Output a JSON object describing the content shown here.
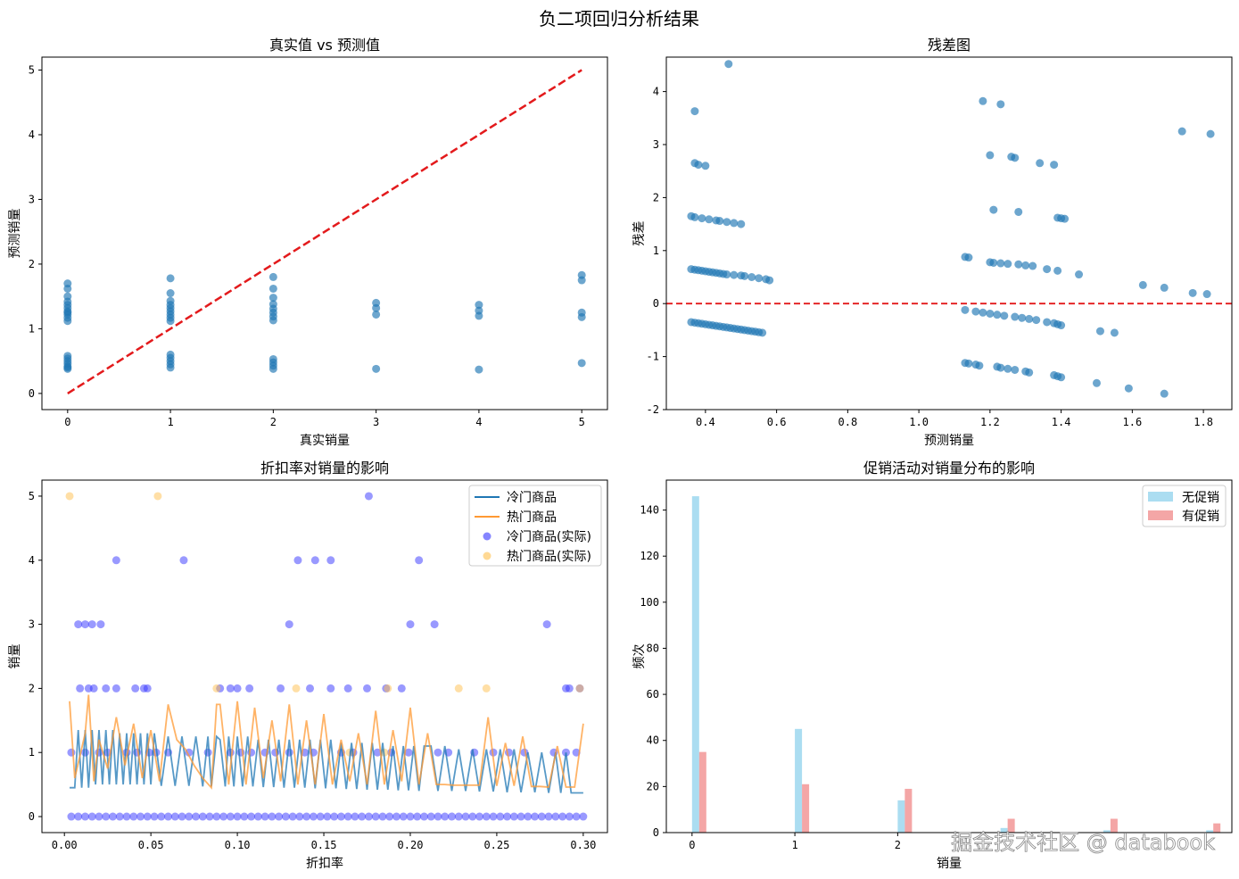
{
  "figure": {
    "suptitle": "负二项回归分析结果",
    "watermark": "掘金技术社区 @ databook"
  },
  "chart_data": [
    {
      "type": "scatter",
      "title": "真实值 vs 预测值",
      "xlabel": "真实销量",
      "ylabel": "预测销量",
      "xlim": [
        -0.25,
        5.25
      ],
      "ylim": [
        -0.25,
        5.2
      ],
      "xticks": [
        0,
        1,
        2,
        3,
        4,
        5
      ],
      "yticks": [
        0,
        1,
        2,
        3,
        4,
        5
      ],
      "color": "#1f77b4",
      "reference_line": {
        "x": [
          0,
          5
        ],
        "y": [
          0,
          5
        ],
        "color": "#e31a1c",
        "style": "dashed"
      },
      "points": {
        "x": [
          0,
          0,
          0,
          0,
          0,
          0,
          0,
          0,
          0,
          0,
          0,
          0,
          0,
          0,
          0,
          0,
          0,
          0,
          1,
          1,
          1,
          1,
          1,
          1,
          1,
          1,
          1,
          1,
          1,
          1,
          1,
          1,
          2,
          2,
          2,
          2,
          2,
          2,
          2,
          2,
          2,
          2,
          2,
          2,
          3,
          3,
          3,
          3,
          4,
          4,
          4,
          4,
          5,
          5,
          5,
          5,
          5
        ],
        "y": [
          0.38,
          0.42,
          0.46,
          0.5,
          0.54,
          0.58,
          1.12,
          1.17,
          1.22,
          1.27,
          1.32,
          1.37,
          1.42,
          1.5,
          1.62,
          1.7,
          0.4,
          1.25,
          0.4,
          0.45,
          0.5,
          0.55,
          0.6,
          1.12,
          1.17,
          1.22,
          1.27,
          1.32,
          1.37,
          1.43,
          1.55,
          1.78,
          0.38,
          0.43,
          0.48,
          0.53,
          1.13,
          1.19,
          1.25,
          1.31,
          1.38,
          1.48,
          1.62,
          1.8,
          0.38,
          1.22,
          1.32,
          1.4,
          0.37,
          1.2,
          1.28,
          1.37,
          0.47,
          1.18,
          1.25,
          1.75,
          1.83
        ]
      }
    },
    {
      "type": "scatter",
      "title": "残差图",
      "xlabel": "预测销量",
      "ylabel": "残差",
      "xlim": [
        0.29,
        1.88
      ],
      "ylim": [
        -2,
        4.65
      ],
      "xticks": [
        0.4,
        0.6,
        0.8,
        1.0,
        1.2,
        1.4,
        1.6,
        1.8
      ],
      "xtick_labels": [
        "0.4",
        "0.6",
        "0.8",
        "1.0",
        "1.2",
        "1.4",
        "1.6",
        "1.8"
      ],
      "yticks": [
        -2,
        -1,
        0,
        1,
        2,
        3,
        4
      ],
      "color": "#1f77b4",
      "reference_line": {
        "y": 0,
        "color": "#e31a1c",
        "style": "dashed"
      },
      "points": {
        "x": [
          0.36,
          0.37,
          0.38,
          0.39,
          0.4,
          0.41,
          0.42,
          0.43,
          0.44,
          0.45,
          0.46,
          0.47,
          0.48,
          0.49,
          0.5,
          0.51,
          0.52,
          0.53,
          0.54,
          0.55,
          0.56,
          0.36,
          0.37,
          0.38,
          0.39,
          0.4,
          0.41,
          0.42,
          0.43,
          0.44,
          0.45,
          0.46,
          0.48,
          0.5,
          0.51,
          0.53,
          0.55,
          0.57,
          0.58,
          0.36,
          0.37,
          0.39,
          0.41,
          0.43,
          0.44,
          0.46,
          0.48,
          0.5,
          0.37,
          0.38,
          0.4,
          0.465,
          0.37,
          1.13,
          1.16,
          1.18,
          1.2,
          1.22,
          1.24,
          1.27,
          1.29,
          1.31,
          1.33,
          1.36,
          1.38,
          1.39,
          1.4,
          1.13,
          1.14,
          1.16,
          1.17,
          1.22,
          1.23,
          1.25,
          1.27,
          1.3,
          1.31,
          1.38,
          1.39,
          1.4,
          1.13,
          1.14,
          1.2,
          1.21,
          1.23,
          1.25,
          1.28,
          1.3,
          1.32,
          1.36,
          1.39,
          1.45,
          1.21,
          1.28,
          1.39,
          1.4,
          1.41,
          1.2,
          1.26,
          1.27,
          1.34,
          1.38,
          1.18,
          1.23,
          1.51,
          1.55,
          1.63,
          1.69,
          1.77,
          1.81,
          1.5,
          1.59,
          1.69,
          1.74,
          1.82
        ],
        "y": [
          -0.35,
          -0.36,
          -0.37,
          -0.38,
          -0.39,
          -0.4,
          -0.41,
          -0.42,
          -0.43,
          -0.44,
          -0.45,
          -0.46,
          -0.47,
          -0.48,
          -0.49,
          -0.5,
          -0.51,
          -0.52,
          -0.53,
          -0.54,
          -0.55,
          0.65,
          0.64,
          0.63,
          0.62,
          0.61,
          0.6,
          0.59,
          0.58,
          0.57,
          0.56,
          0.55,
          0.54,
          0.53,
          0.52,
          0.5,
          0.48,
          0.46,
          0.44,
          1.65,
          1.63,
          1.61,
          1.59,
          1.57,
          1.56,
          1.54,
          1.52,
          1.5,
          2.65,
          2.62,
          2.6,
          4.52,
          3.63,
          -0.12,
          -0.15,
          -0.17,
          -0.19,
          -0.21,
          -0.23,
          -0.25,
          -0.27,
          -0.29,
          -0.31,
          -0.35,
          -0.37,
          -0.39,
          -0.41,
          -1.12,
          -1.13,
          -1.15,
          -1.17,
          -1.19,
          -1.21,
          -1.23,
          -1.25,
          -1.28,
          -1.3,
          -1.35,
          -1.37,
          -1.39,
          0.88,
          0.87,
          0.78,
          0.77,
          0.76,
          0.75,
          0.74,
          0.72,
          0.71,
          0.65,
          0.62,
          0.55,
          1.77,
          1.73,
          1.62,
          1.61,
          1.6,
          2.8,
          2.77,
          2.75,
          2.65,
          2.62,
          3.82,
          3.76,
          -0.52,
          -0.55,
          0.35,
          0.3,
          0.2,
          0.18,
          -1.5,
          -1.6,
          -1.7,
          3.25,
          3.2
        ]
      }
    },
    {
      "type": "line",
      "title": "折扣率对销量的影响",
      "xlabel": "折扣率",
      "ylabel": "销量",
      "xlim": [
        -0.013,
        0.314
      ],
      "ylim": [
        -0.25,
        5.25
      ],
      "xticks": [
        0,
        0.05,
        0.1,
        0.15,
        0.2,
        0.25,
        0.3
      ],
      "xtick_labels": [
        "0.00",
        "0.05",
        "0.10",
        "0.15",
        "0.20",
        "0.25",
        "0.30"
      ],
      "yticks": [
        0,
        1,
        2,
        3,
        4,
        5
      ],
      "legend": "top-right",
      "series": [
        {
          "name": "冷门商品",
          "color": "#1f77b4",
          "kind": "line",
          "x": [
            0.003,
            0.006,
            0.008,
            0.01,
            0.012,
            0.014,
            0.016,
            0.018,
            0.02,
            0.022,
            0.024,
            0.026,
            0.028,
            0.03,
            0.032,
            0.034,
            0.036,
            0.038,
            0.04,
            0.042,
            0.044,
            0.046,
            0.048,
            0.05,
            0.052,
            0.056,
            0.06,
            0.064,
            0.068,
            0.072,
            0.076,
            0.08,
            0.083,
            0.085,
            0.088,
            0.09,
            0.093,
            0.095,
            0.098,
            0.1,
            0.103,
            0.106,
            0.109,
            0.112,
            0.115,
            0.118,
            0.121,
            0.124,
            0.127,
            0.13,
            0.133,
            0.136,
            0.139,
            0.142,
            0.145,
            0.148,
            0.151,
            0.154,
            0.157,
            0.16,
            0.163,
            0.166,
            0.169,
            0.172,
            0.175,
            0.178,
            0.181,
            0.184,
            0.187,
            0.19,
            0.193,
            0.196,
            0.199,
            0.202,
            0.205,
            0.208,
            0.212,
            0.216,
            0.22,
            0.224,
            0.228,
            0.232,
            0.236,
            0.24,
            0.244,
            0.248,
            0.252,
            0.256,
            0.26,
            0.264,
            0.268,
            0.272,
            0.276,
            0.28,
            0.284,
            0.287,
            0.29,
            0.293,
            0.296,
            0.3
          ],
          "y": [
            0.45,
            0.45,
            1.35,
            0.45,
            1.35,
            0.45,
            1.35,
            0.5,
            1.35,
            0.5,
            1.35,
            0.5,
            1.35,
            0.5,
            1.3,
            0.5,
            1.3,
            0.5,
            1.3,
            0.5,
            1.3,
            0.5,
            1.3,
            0.5,
            1.3,
            0.48,
            1.25,
            0.48,
            1.25,
            0.48,
            1.25,
            0.47,
            1.25,
            0.47,
            1.25,
            1.2,
            0.47,
            1.25,
            0.47,
            1.25,
            0.47,
            1.25,
            0.47,
            1.2,
            0.46,
            1.2,
            0.46,
            1.2,
            0.45,
            1.2,
            0.45,
            1.2,
            0.45,
            1.2,
            0.44,
            1.2,
            0.44,
            1.2,
            0.44,
            1.15,
            0.43,
            1.15,
            0.43,
            1.15,
            0.42,
            1.15,
            0.42,
            1.15,
            0.42,
            1.1,
            0.41,
            1.1,
            0.41,
            1.1,
            0.4,
            1.1,
            1.1,
            0.4,
            1.1,
            0.4,
            1.05,
            0.4,
            1.05,
            0.39,
            1.05,
            0.39,
            1.05,
            0.38,
            1.05,
            0.38,
            1.0,
            0.38,
            1.0,
            0.37,
            1.0,
            0.37,
            1.0,
            0.37,
            0.37,
            0.37
          ]
        },
        {
          "name": "热门商品",
          "color": "#ff9933",
          "kind": "line",
          "x": [
            0.003,
            0.006,
            0.012,
            0.014,
            0.017,
            0.02,
            0.025,
            0.03,
            0.035,
            0.04,
            0.045,
            0.05,
            0.055,
            0.06,
            0.065,
            0.07,
            0.075,
            0.08,
            0.085,
            0.088,
            0.09,
            0.095,
            0.1,
            0.105,
            0.11,
            0.115,
            0.12,
            0.125,
            0.13,
            0.135,
            0.14,
            0.145,
            0.15,
            0.155,
            0.16,
            0.165,
            0.17,
            0.175,
            0.18,
            0.185,
            0.19,
            0.195,
            0.2,
            0.205,
            0.21,
            0.215,
            0.22,
            0.225,
            0.23,
            0.235,
            0.24,
            0.245,
            0.25,
            0.255,
            0.26,
            0.265,
            0.27,
            0.275,
            0.28,
            0.285,
            0.29,
            0.295,
            0.3
          ],
          "y": [
            1.8,
            0.6,
            1.3,
            1.9,
            0.55,
            1.2,
            0.75,
            1.55,
            0.8,
            1.45,
            0.6,
            1.35,
            0.55,
            1.75,
            1.2,
            1.05,
            0.8,
            0.6,
            0.45,
            1.75,
            1.75,
            0.5,
            1.8,
            0.5,
            1.7,
            0.6,
            1.5,
            0.55,
            1.75,
            0.5,
            1.5,
            0.5,
            1.6,
            0.5,
            1.2,
            0.55,
            1.3,
            0.5,
            1.65,
            0.5,
            1.35,
            0.55,
            1.7,
            0.5,
            1.3,
            0.5,
            0.5,
            0.49,
            0.49,
            0.49,
            0.49,
            1.55,
            0.48,
            1.15,
            0.48,
            1.25,
            0.47,
            0.47,
            0.46,
            1.1,
            0.46,
            0.46,
            1.45
          ]
        },
        {
          "name": "冷门商品(实际)",
          "color": "#3333ff",
          "kind": "scatter",
          "x": [
            0.03,
            0.069,
            0.135,
            0.145,
            0.154,
            0.176,
            0.205,
            0.008,
            0.012,
            0.016,
            0.021,
            0.13,
            0.2,
            0.214,
            0.279,
            0.009,
            0.014,
            0.017,
            0.024,
            0.03,
            0.041,
            0.046,
            0.048,
            0.09,
            0.096,
            0.1,
            0.107,
            0.125,
            0.142,
            0.154,
            0.164,
            0.175,
            0.186,
            0.195,
            0.29,
            0.292,
            0.298,
            0.004,
            0.012,
            0.02,
            0.025,
            0.036,
            0.042,
            0.049,
            0.053,
            0.06,
            0.072,
            0.083,
            0.096,
            0.102,
            0.108,
            0.116,
            0.122,
            0.13,
            0.139,
            0.144,
            0.16,
            0.167,
            0.181,
            0.189,
            0.199,
            0.216,
            0.222,
            0.237,
            0.248,
            0.257,
            0.266,
            0.283,
            0.29,
            0.296
          ],
          "y": [
            4,
            4,
            4,
            4,
            4,
            5,
            4,
            3,
            3,
            3,
            3,
            3,
            3,
            3,
            3,
            2,
            2,
            2,
            2,
            2,
            2,
            2,
            2,
            2,
            2,
            2,
            2,
            2,
            2,
            2,
            2,
            2,
            2,
            2,
            2,
            2,
            2,
            1,
            1,
            1,
            1,
            1,
            1,
            1,
            1,
            1,
            1,
            1,
            1,
            1,
            1,
            1,
            1,
            1,
            1,
            1,
            1,
            1,
            1,
            1,
            1,
            1,
            1,
            1,
            1,
            1,
            1,
            1,
            1,
            1
          ]
        },
        {
          "name": "热门商品(实际)",
          "color": "#ffc04d",
          "kind": "scatter",
          "x": [
            0.003,
            0.054,
            0.088,
            0.134,
            0.187,
            0.228,
            0.244,
            0.298,
            0.165,
            0.185
          ],
          "y": [
            5,
            5,
            2,
            2,
            2,
            2,
            2,
            2,
            1,
            1
          ]
        }
      ],
      "zero_row": {
        "x": [
          0.004,
          0.008,
          0.012,
          0.016,
          0.02,
          0.024,
          0.028,
          0.032,
          0.036,
          0.04,
          0.044,
          0.048,
          0.052,
          0.056,
          0.06,
          0.064,
          0.068,
          0.072,
          0.076,
          0.08,
          0.084,
          0.088,
          0.092,
          0.096,
          0.1,
          0.104,
          0.108,
          0.112,
          0.116,
          0.12,
          0.124,
          0.128,
          0.132,
          0.136,
          0.14,
          0.144,
          0.148,
          0.152,
          0.156,
          0.16,
          0.164,
          0.168,
          0.172,
          0.176,
          0.18,
          0.184,
          0.188,
          0.192,
          0.196,
          0.2,
          0.204,
          0.208,
          0.212,
          0.216,
          0.22,
          0.224,
          0.228,
          0.232,
          0.236,
          0.24,
          0.244,
          0.248,
          0.252,
          0.256,
          0.26,
          0.264,
          0.268,
          0.272,
          0.276,
          0.28,
          0.284,
          0.288,
          0.292,
          0.296,
          0.3
        ],
        "y": 0
      }
    },
    {
      "type": "bar",
      "title": "促销活动对销量分布的影响",
      "xlabel": "销量",
      "ylabel": "频次",
      "xlim": [
        -0.25,
        5.25
      ],
      "ylim": [
        0,
        153
      ],
      "xticks": [
        0,
        1,
        2
      ],
      "yticks": [
        0,
        20,
        40,
        60,
        80,
        100,
        120,
        140
      ],
      "legend": "top-right",
      "series": [
        {
          "name": "无促销",
          "color": "#87ceeb",
          "x": [
            0,
            1,
            2,
            3,
            4,
            5
          ],
          "values": [
            146,
            45,
            14,
            2,
            1,
            1
          ]
        },
        {
          "name": "有促销",
          "color": "#f08080",
          "x": [
            0,
            1,
            2,
            3,
            4,
            5
          ],
          "values": [
            35,
            21,
            19,
            6,
            6,
            4
          ]
        }
      ]
    }
  ]
}
